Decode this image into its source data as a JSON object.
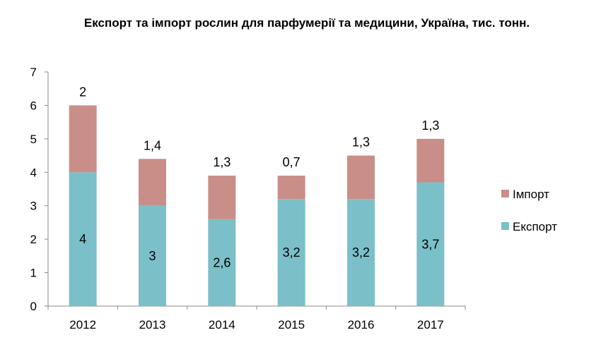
{
  "chart_data": {
    "type": "bar",
    "stacked": true,
    "title": "Експорт та імпорт рослин для парфумерії та медицини, Україна, тис. тонн.",
    "categories": [
      "2012",
      "2013",
      "2014",
      "2015",
      "2016",
      "2017"
    ],
    "series": [
      {
        "name": "Експорт",
        "values": [
          4,
          3,
          2.6,
          3.2,
          3.2,
          3.7
        ],
        "labels": [
          "4",
          "3",
          "2,6",
          "3,2",
          "3,2",
          "3,7"
        ],
        "color": "#7bbfc8"
      },
      {
        "name": "Імпорт",
        "values": [
          2,
          1.4,
          1.3,
          0.7,
          1.3,
          1.3
        ],
        "labels": [
          "2",
          "1,4",
          "1,3",
          "0,7",
          "1,3",
          "1,3"
        ],
        "color": "#c98e88"
      }
    ],
    "ylim": [
      0,
      7
    ],
    "yticks": [
      "0",
      "1",
      "2",
      "3",
      "4",
      "5",
      "6",
      "7"
    ],
    "grid": false,
    "legend": {
      "position": "right",
      "entries": [
        "Імпорт",
        "Експорт"
      ]
    },
    "colors": {
      "axis": "#888888"
    }
  }
}
